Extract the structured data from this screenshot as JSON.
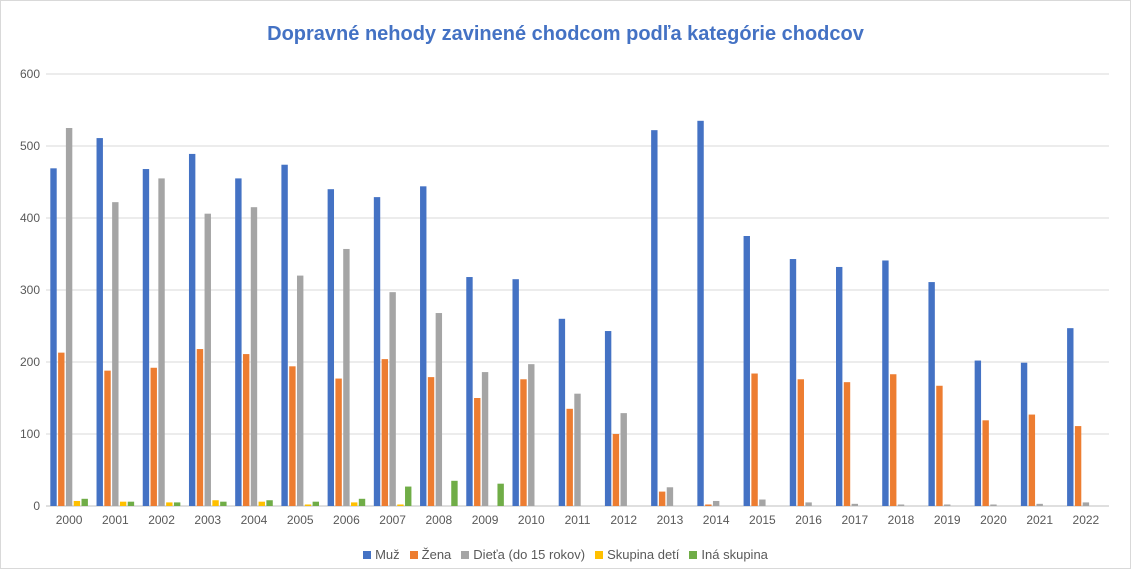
{
  "chart_data": {
    "type": "bar",
    "title": "Dopravné nehody zavinené chodcom podľa kategórie chodcov",
    "xlabel": "",
    "ylabel": "",
    "ylim": [
      0,
      600
    ],
    "yticks": [
      "0",
      "100",
      "200",
      "300",
      "400",
      "500",
      "600"
    ],
    "grid": true,
    "legend_position": "bottom",
    "categories": [
      "2000",
      "2001",
      "2002",
      "2003",
      "2004",
      "2005",
      "2006",
      "2007",
      "2008",
      "2009",
      "2010",
      "2011",
      "2012",
      "2013",
      "2014",
      "2015",
      "2016",
      "2017",
      "2018",
      "2019",
      "2020",
      "2021",
      "2022"
    ],
    "series": [
      {
        "name": "Muž",
        "color": "#4472c4",
        "values": [
          469,
          511,
          468,
          489,
          455,
          474,
          440,
          429,
          444,
          318,
          315,
          260,
          243,
          522,
          535,
          375,
          343,
          332,
          341,
          311,
          202,
          199,
          247
        ]
      },
      {
        "name": "Žena",
        "color": "#ed7d31",
        "values": [
          213,
          188,
          192,
          218,
          211,
          194,
          177,
          204,
          179,
          150,
          176,
          135,
          100,
          20,
          2,
          184,
          176,
          172,
          183,
          167,
          119,
          127,
          111
        ]
      },
      {
        "name": "Dieťa (do 15 rokov)",
        "color": "#a5a5a5",
        "values": [
          525,
          422,
          455,
          406,
          415,
          320,
          357,
          297,
          268,
          186,
          197,
          156,
          129,
          26,
          7,
          9,
          5,
          3,
          1,
          1,
          2,
          3,
          5
        ]
      },
      {
        "name": "Skupina detí",
        "color": "#ffc000",
        "values": [
          7,
          6,
          5,
          8,
          6,
          2,
          5,
          1,
          0,
          0,
          0,
          0,
          0,
          0,
          0,
          0,
          0,
          0,
          0,
          0,
          0,
          0,
          0
        ]
      },
      {
        "name": "Iná skupina",
        "color": "#70ad47",
        "values": [
          10,
          6,
          5,
          6,
          8,
          6,
          10,
          27,
          35,
          31,
          0,
          0,
          0,
          0,
          0,
          0,
          0,
          0,
          0,
          0,
          0,
          0,
          0
        ]
      }
    ]
  }
}
